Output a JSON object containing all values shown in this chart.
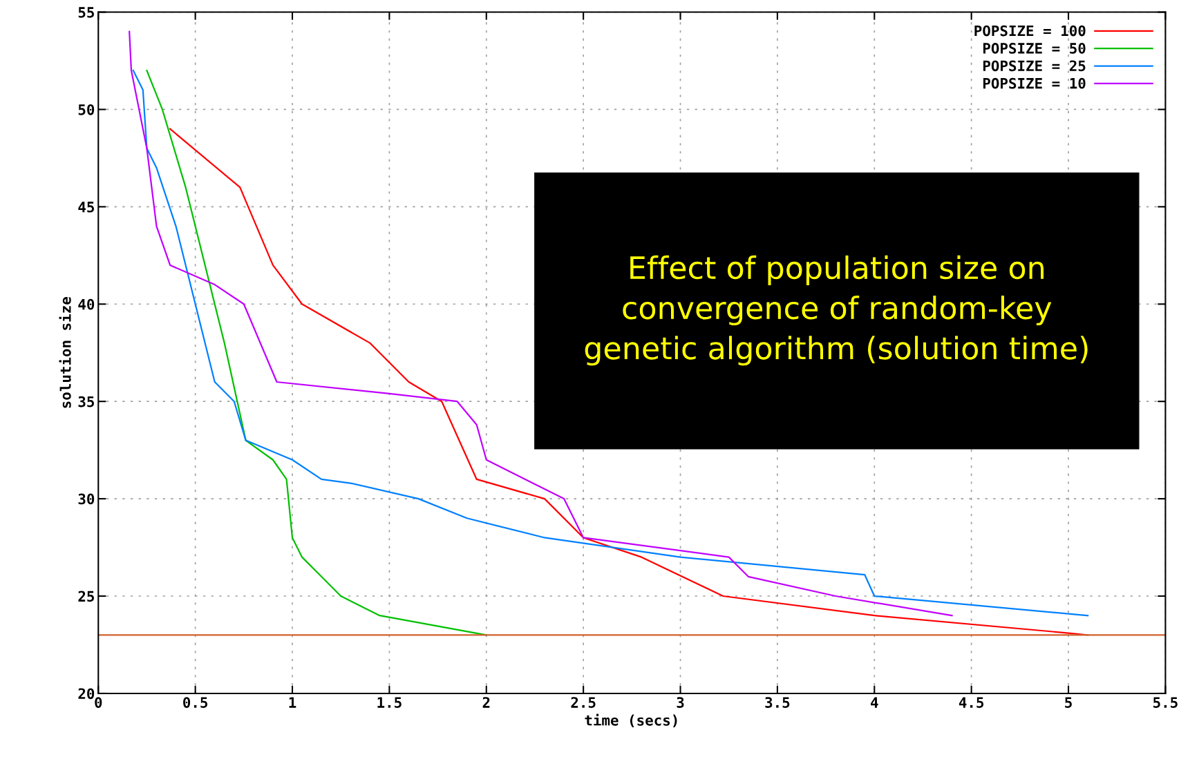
{
  "chart_data": {
    "type": "line",
    "xlabel": "time (secs)",
    "ylabel": "solution size",
    "xlim": [
      0,
      5.5
    ],
    "xticks": [
      0,
      0.5,
      1,
      1.5,
      2,
      2.5,
      3,
      3.5,
      4,
      4.5,
      5,
      5.5
    ],
    "ylim": [
      20,
      55
    ],
    "yticks": [
      20,
      25,
      30,
      35,
      40,
      45,
      50,
      55
    ],
    "grid": true,
    "legend": "top right",
    "marker": "none",
    "line_style": "solid",
    "annotations": [
      "Effect of population size on\nconvergence of random-key\ngenetic algorithm (solution time)"
    ],
    "ref_lines": [
      {
        "axis": "y",
        "value": 23,
        "color": "#d0602a"
      }
    ],
    "series": [
      {
        "name": "POPSIZE = 100",
        "color": "#ff0000",
        "x": [
          0.37,
          0.73,
          0.9,
          1.05,
          1.4,
          1.6,
          1.77,
          1.95,
          2.3,
          2.5,
          2.8,
          3.22,
          4.0,
          5.0,
          5.1
        ],
        "values": [
          49,
          46,
          42,
          40,
          38,
          36,
          35,
          31,
          30,
          28,
          27,
          25,
          24,
          23.1,
          23
        ]
      },
      {
        "name": "POPSIZE = 50",
        "color": "#00c000",
        "x": [
          0.25,
          0.33,
          0.45,
          0.55,
          0.65,
          0.76,
          0.9,
          0.97,
          1.0,
          1.05,
          1.15,
          1.25,
          1.45,
          2.0
        ],
        "values": [
          52,
          50,
          46,
          42,
          38,
          33,
          32,
          31,
          28,
          27,
          26,
          25,
          24,
          23
        ]
      },
      {
        "name": "POPSIZE = 25",
        "color": "#0080ff",
        "x": [
          0.18,
          0.23,
          0.25,
          0.3,
          0.4,
          0.6,
          0.7,
          0.76,
          1.0,
          1.15,
          1.3,
          1.65,
          1.9,
          2.3,
          3.0,
          3.95,
          4.0,
          5.1
        ],
        "values": [
          52,
          51,
          48,
          47,
          44,
          36,
          35,
          33,
          32,
          31,
          30.8,
          30,
          29,
          28,
          27,
          26.1,
          25,
          24
        ]
      },
      {
        "name": "POPSIZE = 10",
        "color": "#c000ff",
        "x": [
          0.16,
          0.17,
          0.25,
          0.3,
          0.37,
          0.6,
          0.75,
          0.92,
          1.5,
          1.85,
          1.95,
          2.0,
          2.4,
          2.5,
          3.25,
          3.35,
          3.8,
          4.4
        ],
        "values": [
          54,
          52,
          48,
          44,
          42,
          41,
          40,
          36,
          35.4,
          35,
          33.8,
          32,
          30,
          28,
          27,
          26,
          25,
          24
        ]
      }
    ]
  }
}
